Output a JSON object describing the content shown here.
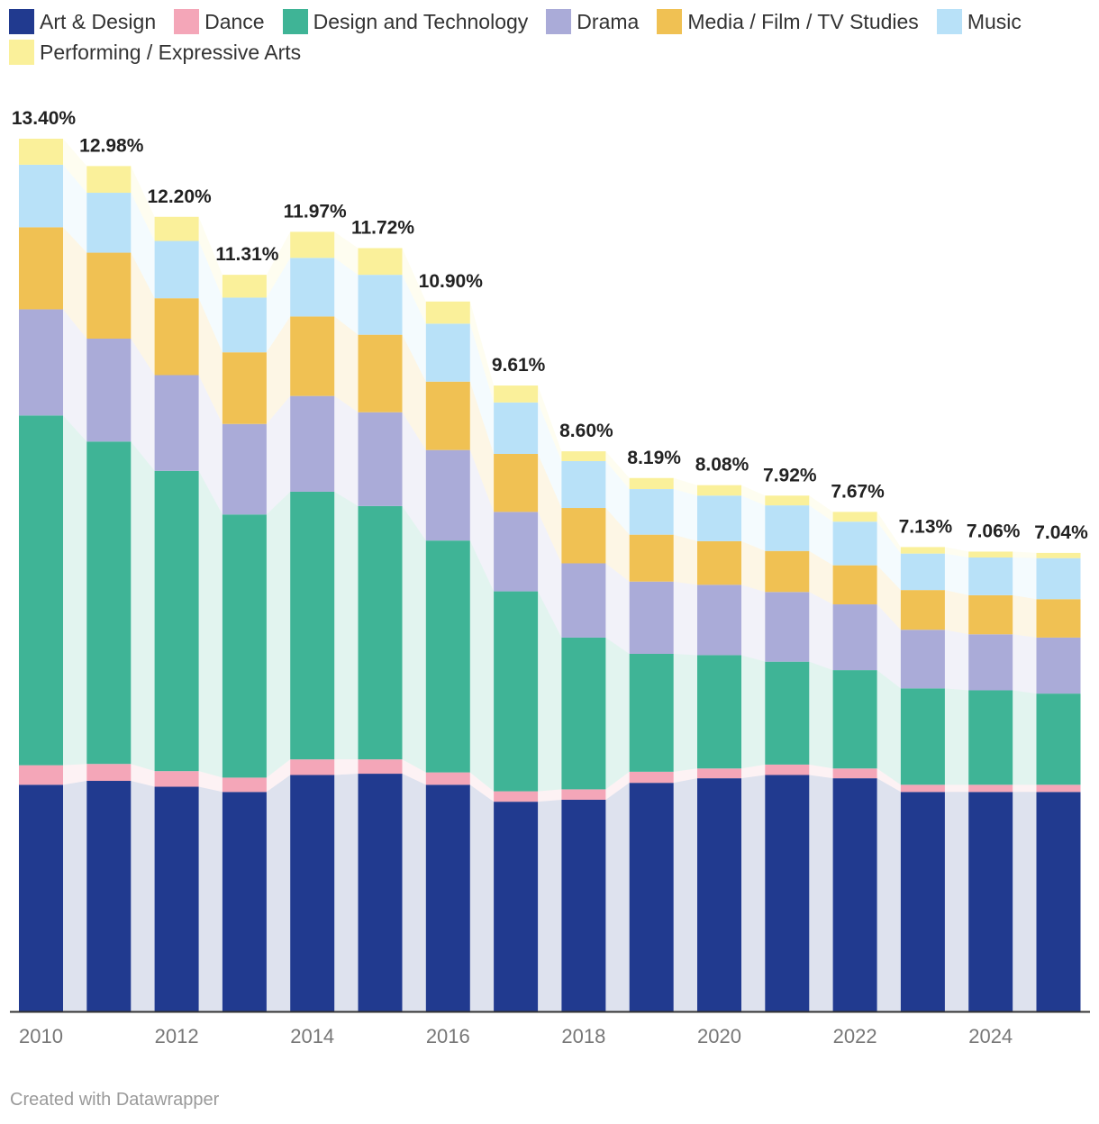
{
  "chart_data": {
    "type": "bar",
    "stacked": true,
    "categories": [
      "2010",
      "2011",
      "2012",
      "2013",
      "2014",
      "2015",
      "2016",
      "2017",
      "2018",
      "2019",
      "2020",
      "2021",
      "2022",
      "2023",
      "2024",
      "2025"
    ],
    "x_tick_labels": [
      "2010",
      "2012",
      "2014",
      "2016",
      "2018",
      "2020",
      "2022",
      "2024"
    ],
    "series": [
      {
        "name": "Art & Design",
        "color": "#213a8f",
        "values": [
          3.48,
          3.54,
          3.45,
          3.37,
          3.63,
          3.65,
          3.48,
          3.22,
          3.25,
          3.51,
          3.58,
          3.63,
          3.58,
          3.37,
          3.37,
          3.37
        ]
      },
      {
        "name": "Dance",
        "color": "#f4a6b8",
        "values": [
          0.3,
          0.26,
          0.24,
          0.22,
          0.24,
          0.22,
          0.19,
          0.16,
          0.16,
          0.17,
          0.15,
          0.16,
          0.15,
          0.11,
          0.11,
          0.11
        ]
      },
      {
        "name": "Design and Technology",
        "color": "#3fb496",
        "values": [
          5.37,
          4.95,
          4.61,
          4.04,
          4.11,
          3.89,
          3.56,
          3.07,
          2.33,
          1.81,
          1.74,
          1.58,
          1.51,
          1.48,
          1.45,
          1.4
        ]
      },
      {
        "name": "Drama",
        "color": "#aaabd8",
        "values": [
          1.63,
          1.58,
          1.47,
          1.39,
          1.47,
          1.44,
          1.39,
          1.22,
          1.14,
          1.11,
          1.08,
          1.07,
          1.01,
          0.9,
          0.86,
          0.86
        ]
      },
      {
        "name": "Media / Film / TV Studies",
        "color": "#f0c153",
        "values": [
          1.26,
          1.32,
          1.18,
          1.1,
          1.22,
          1.19,
          1.05,
          0.89,
          0.85,
          0.72,
          0.67,
          0.63,
          0.6,
          0.61,
          0.6,
          0.59
        ]
      },
      {
        "name": "Music",
        "color": "#b8e1f8",
        "values": [
          0.96,
          0.92,
          0.88,
          0.84,
          0.9,
          0.92,
          0.89,
          0.79,
          0.72,
          0.7,
          0.7,
          0.7,
          0.67,
          0.56,
          0.58,
          0.63
        ]
      },
      {
        "name": "Performing / Expressive Arts",
        "color": "#faf09a",
        "values": [
          0.4,
          0.41,
          0.37,
          0.35,
          0.4,
          0.41,
          0.34,
          0.26,
          0.15,
          0.17,
          0.16,
          0.15,
          0.15,
          0.1,
          0.09,
          0.08
        ]
      }
    ],
    "totals": [
      13.4,
      12.98,
      12.2,
      11.31,
      11.97,
      11.72,
      10.9,
      9.61,
      8.6,
      8.19,
      8.08,
      7.92,
      7.67,
      7.13,
      7.06,
      7.04
    ],
    "total_labels": [
      "13.40%",
      "12.98%",
      "12.20%",
      "11.31%",
      "11.97%",
      "11.72%",
      "10.90%",
      "9.61%",
      "8.60%",
      "8.19%",
      "8.08%",
      "7.92%",
      "7.67%",
      "7.13%",
      "7.06%",
      "7.04%"
    ],
    "ylim": [
      0,
      13.4
    ],
    "title": "",
    "xlabel": "",
    "ylabel": "",
    "legend_position": "top-left",
    "grid": false
  },
  "credit": "Created with Datawrapper"
}
